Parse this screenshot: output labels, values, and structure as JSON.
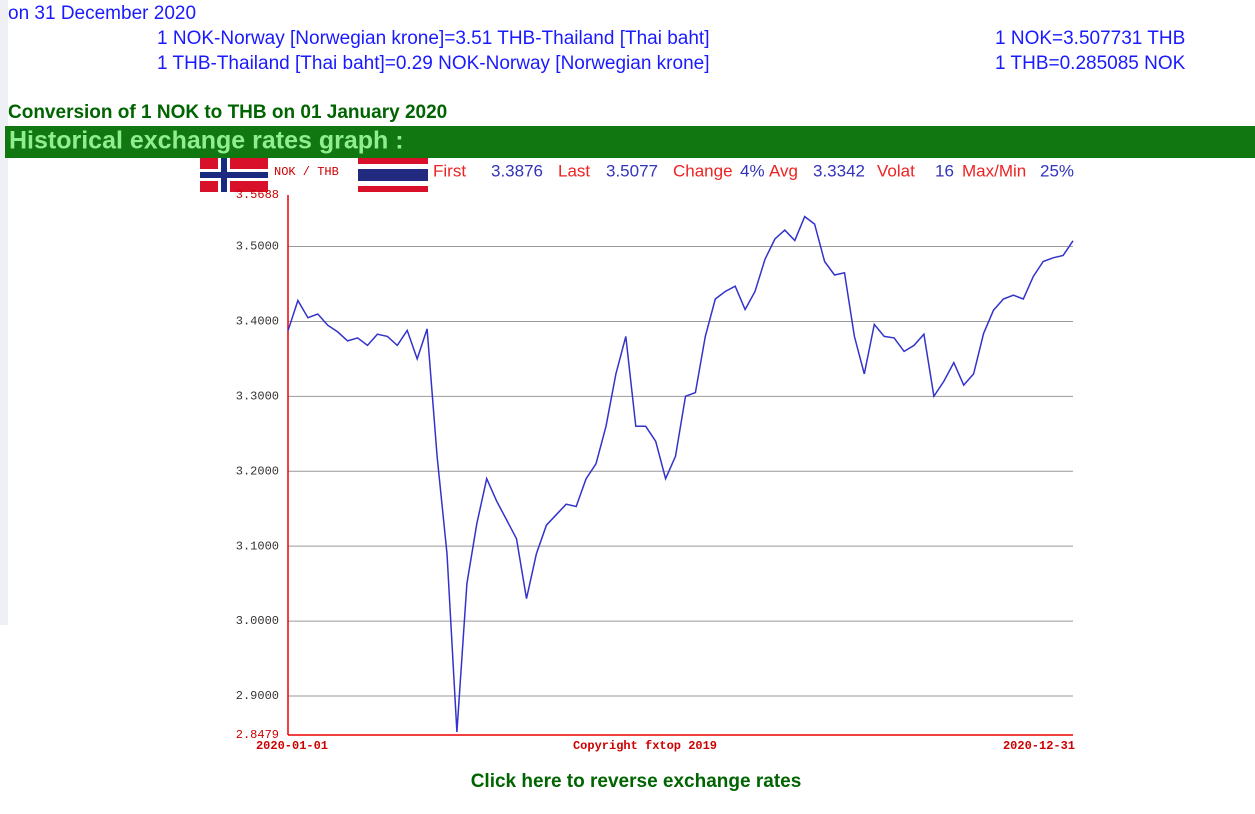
{
  "header": {
    "date_line": "on 31 December 2020",
    "rows": [
      {
        "left": "1 NOK-Norway [Norwegian krone]=3.51 THB-Thailand [Thai baht]",
        "right": "1 NOK=3.507731 THB"
      },
      {
        "left": "1 THB-Thailand [Thai baht]=0.29 NOK-Norway [Norwegian krone]",
        "right": "1 THB=0.285085 NOK"
      }
    ]
  },
  "conversion_title": "Conversion of 1 NOK to THB on 01 January 2020",
  "graph_header": "Historical exchange rates graph :",
  "chart_data": {
    "type": "line",
    "pair_label": "NOK / THB",
    "stats": [
      {
        "label": "First",
        "value": "3.3876"
      },
      {
        "label": "Last",
        "value": "3.5077"
      },
      {
        "label": "Change",
        "value": "4%"
      },
      {
        "label": "Avg",
        "value": "3.3342"
      },
      {
        "label": "Volat",
        "value": "16"
      },
      {
        "label": "Max/Min",
        "value": "25%"
      }
    ],
    "xticks": [
      "2020-01-01",
      "2020-12-31"
    ],
    "copyright": "Copyright fxtop 2019",
    "color": "#3333cc",
    "grid": true,
    "ylim": [
      2.8479,
      3.5688
    ],
    "yticks": [
      2.8479,
      {
        "value": 2.9,
        "label": "2.9000"
      },
      {
        "value": 3.0,
        "label": "3.0000"
      },
      {
        "value": 3.1,
        "label": "3.1000"
      },
      {
        "value": 3.2,
        "label": "3.2000"
      },
      {
        "value": 3.3,
        "label": "3.3000"
      },
      {
        "value": 3.4,
        "label": "3.4000"
      },
      {
        "value": 3.5,
        "label": "3.5000"
      },
      3.5688
    ],
    "values": [
      3.3876,
      3.428,
      3.405,
      3.41,
      3.395,
      3.386,
      3.374,
      3.378,
      3.368,
      3.383,
      3.38,
      3.368,
      3.388,
      3.35,
      3.39,
      3.22,
      3.09,
      2.852,
      3.05,
      3.13,
      3.19,
      3.16,
      3.135,
      3.11,
      3.03,
      3.09,
      3.128,
      3.142,
      3.156,
      3.153,
      3.19,
      3.21,
      3.26,
      3.33,
      3.38,
      3.26,
      3.26,
      3.24,
      3.19,
      3.22,
      3.3,
      3.305,
      3.38,
      3.43,
      3.44,
      3.447,
      3.416,
      3.44,
      3.483,
      3.51,
      3.522,
      3.508,
      3.54,
      3.53,
      3.48,
      3.462,
      3.465,
      3.38,
      3.33,
      3.396,
      3.38,
      3.378,
      3.36,
      3.368,
      3.383,
      3.3,
      3.32,
      3.345,
      3.315,
      3.33,
      3.384,
      3.415,
      3.43,
      3.435,
      3.43,
      3.46,
      3.48,
      3.485,
      3.488,
      3.5077
    ]
  },
  "reverse_link": "Click here to reverse exchange rates"
}
